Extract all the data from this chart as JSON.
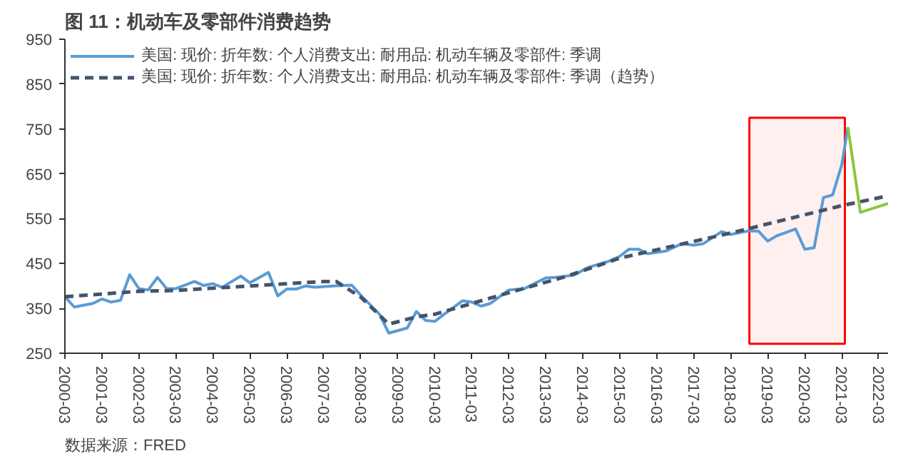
{
  "chart_data": {
    "type": "line",
    "title": "图 11：机动车及零部件消费趋势",
    "xlim": [
      "2000-03",
      "2022-06"
    ],
    "xticks": [
      "2000-03",
      "2001-03",
      "2002-03",
      "2003-03",
      "2004-03",
      "2005-03",
      "2006-03",
      "2007-03",
      "2008-03",
      "2009-03",
      "2010-03",
      "2011-03",
      "2012-03",
      "2013-03",
      "2014-03",
      "2015-03",
      "2016-03",
      "2017-03",
      "2018-03",
      "2019-03",
      "2020-03",
      "2021-03",
      "2022-03"
    ],
    "ylim": [
      250,
      950
    ],
    "yticks": [
      250,
      350,
      450,
      550,
      650,
      750,
      850,
      950
    ],
    "grid": false,
    "legend": "top left",
    "series": [
      {
        "name": "美国: 现价: 折年数: 个人消费支出: 耐用品: 机动车辆及零部件: 季调",
        "color": "#5b9bd5",
        "line_style": "solid",
        "x": [
          "2000-03",
          "2000-06",
          "2000-12",
          "2001-03",
          "2001-06",
          "2001-09",
          "2001-12",
          "2002-03",
          "2002-06",
          "2002-09",
          "2002-12",
          "2003-03",
          "2003-09",
          "2003-12",
          "2004-03",
          "2004-06",
          "2004-12",
          "2005-03",
          "2005-09",
          "2005-12",
          "2006-03",
          "2006-06",
          "2006-09",
          "2006-12",
          "2007-06",
          "2007-12",
          "2008-03",
          "2008-09",
          "2008-12",
          "2009-06",
          "2009-09",
          "2009-12",
          "2010-03",
          "2010-06",
          "2010-12",
          "2011-03",
          "2011-06",
          "2011-09",
          "2012-03",
          "2012-08",
          "2013-03",
          "2013-06",
          "2013-12",
          "2014-05",
          "2014-11",
          "2015-03",
          "2015-06",
          "2015-09",
          "2015-12",
          "2016-06",
          "2016-11",
          "2017-03",
          "2017-06",
          "2017-12",
          "2018-03",
          "2018-09",
          "2018-12",
          "2019-03",
          "2019-06",
          "2019-12",
          "2020-03",
          "2020-06",
          "2020-09",
          "2020-12",
          "2021-03",
          "2021-05"
        ],
        "values": [
          376,
          353,
          361,
          371,
          364,
          368,
          425,
          394,
          391,
          419,
          394,
          394,
          410,
          401,
          405,
          397,
          422,
          407,
          430,
          378,
          393,
          393,
          400,
          397,
          400,
          402,
          379,
          337,
          295,
          306,
          343,
          323,
          321,
          337,
          367,
          364,
          355,
          361,
          391,
          394,
          418,
          419,
          424,
          442,
          454,
          466,
          482,
          482,
          472,
          478,
          494,
          491,
          494,
          521,
          515,
          523,
          522,
          500,
          512,
          527,
          482,
          485,
          597,
          603,
          670,
          754
        ]
      },
      {
        "color": "#8cc63f",
        "line_style": "solid",
        "x": [
          "2021-05",
          "2021-09",
          "2022-06"
        ],
        "values": [
          754,
          564,
          584
        ]
      },
      {
        "name": "美国: 现价: 折年数: 个人消费支出: 耐用品: 机动车辆及零部件: 季调（趋势）",
        "color": "#44546a",
        "line_style": "dashed",
        "x": [
          "2000-03",
          "2002-03",
          "2003-03",
          "2005-03",
          "2007-03",
          "2007-07",
          "2008-03",
          "2008-12",
          "2009-09",
          "2010-03",
          "2012-03",
          "2013-09",
          "2015-03",
          "2018-03",
          "2021-03",
          "2022-06"
        ],
        "values": [
          376,
          388,
          390,
          400,
          410,
          410,
          375,
          315,
          331,
          337,
          385,
          420,
          462,
          518,
          579,
          601
        ]
      }
    ],
    "bands": [
      {
        "axis": "x",
        "from": "2018-09",
        "to": "2021-04",
        "color": "#ff0000"
      }
    ],
    "annotations": [
      "数据来源：FRED"
    ]
  }
}
